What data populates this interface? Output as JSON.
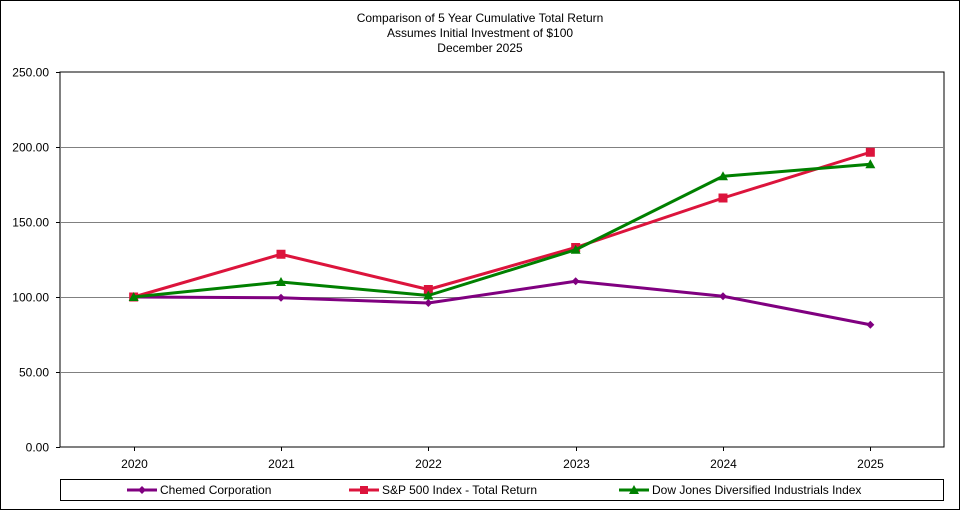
{
  "chart_data": {
    "type": "line",
    "title": "Comparison  of 5 Year Cumulative  Total Return",
    "subtitle": [
      "Assumes Initial Investment  of $100",
      "December 2025"
    ],
    "xlabel": "",
    "ylabel": "",
    "categories": [
      "2020",
      "2021",
      "2022",
      "2023",
      "2024",
      "2025"
    ],
    "ylim": [
      0,
      250
    ],
    "yticks": [
      "0.00",
      "50.00",
      "100.00",
      "150.00",
      "200.00",
      "250.00"
    ],
    "grid": true,
    "legend_position": "bottom",
    "series": [
      {
        "name": "Chemed Corporation",
        "values": [
          100,
          99.5,
          96,
          110.5,
          100.5,
          81.5
        ],
        "color": "#800080",
        "marker": "diamond"
      },
      {
        "name": "S&P 500 Index - Total Return",
        "values": [
          100,
          128.5,
          105,
          133,
          166,
          196.5
        ],
        "color": "#DC143C",
        "marker": "square"
      },
      {
        "name": "Dow Jones Diversified Industrials Index",
        "values": [
          100,
          110,
          101,
          131.5,
          180.5,
          188.5
        ],
        "color": "#008000",
        "marker": "triangle"
      }
    ]
  }
}
